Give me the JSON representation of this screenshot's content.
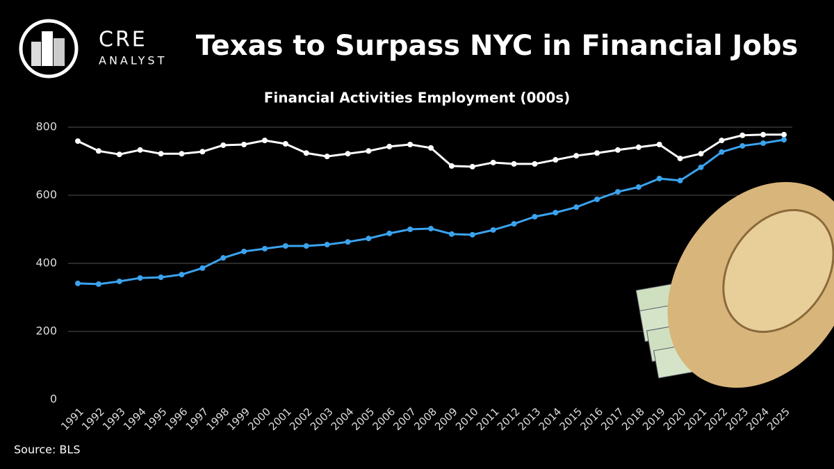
{
  "logo": {
    "line1": "CRE",
    "line2": "ANALYST"
  },
  "chart_data": {
    "type": "line",
    "title": "Texas to Surpass NYC in Financial Jobs",
    "subtitle": "Financial Activities Employment (000s)",
    "source": "Source: BLS",
    "categories": [
      "1991",
      "1992",
      "1993",
      "1994",
      "1995",
      "1996",
      "1997",
      "1998",
      "1999",
      "2000",
      "2001",
      "2002",
      "2003",
      "2004",
      "2005",
      "2006",
      "2007",
      "2008",
      "2009",
      "2010",
      "2011",
      "2012",
      "2013",
      "2014",
      "2015",
      "2016",
      "2017",
      "2018",
      "2019",
      "2020",
      "2021",
      "2022",
      "2023",
      "2024",
      "2025"
    ],
    "series": [
      {
        "color": "#ffffff",
        "values": [
          759,
          730,
          720,
          733,
          722,
          722,
          728,
          747,
          749,
          761,
          751,
          724,
          714,
          722,
          730,
          743,
          749,
          739,
          686,
          684,
          696,
          692,
          692,
          704,
          716,
          724,
          733,
          741,
          749,
          708,
          722,
          761,
          776,
          778,
          778
        ]
      },
      {
        "color": "#3ba3ee",
        "values": [
          341,
          339,
          347,
          357,
          359,
          367,
          386,
          416,
          435,
          443,
          451,
          451,
          455,
          463,
          473,
          488,
          500,
          502,
          486,
          484,
          498,
          516,
          537,
          549,
          565,
          588,
          610,
          624,
          649,
          643,
          682,
          727,
          745,
          753,
          763
        ]
      }
    ],
    "ylim": [
      0,
      800
    ],
    "yticks": [
      0,
      200,
      400,
      600,
      800
    ],
    "grid": true
  }
}
